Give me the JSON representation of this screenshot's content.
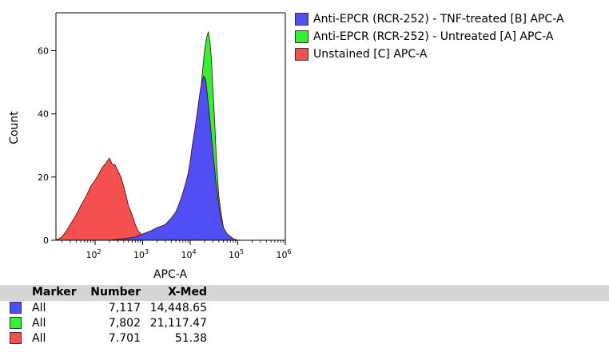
{
  "colors": {
    "tnf": "#4f4ff5",
    "untreated": "#33f233",
    "unstained": "#f45050",
    "outline": "#4a0000"
  },
  "chart_data": {
    "type": "area",
    "xlabel": "APC-A",
    "ylabel": "Count",
    "x_scale": "log",
    "xlim": [
      15,
      1000000
    ],
    "ylim": [
      0,
      72
    ],
    "y_ticks": [
      "0",
      "20",
      "40",
      "60"
    ],
    "x_ticks": [
      {
        "base": "10",
        "exp": "2",
        "value": 100
      },
      {
        "base": "10",
        "exp": "3",
        "value": 1000
      },
      {
        "base": "10",
        "exp": "4",
        "value": 10000
      },
      {
        "base": "10",
        "exp": "5",
        "value": 100000
      },
      {
        "base": "10",
        "exp": "6",
        "value": 1000000
      }
    ],
    "legend_position": "top-right, outside plot",
    "series": [
      {
        "name": "Anti-EPCR (RCR-252) - TNF-treated [B] APC-A",
        "color": "#4f4ff5",
        "x": [
          15,
          100,
          200,
          400,
          700,
          1000,
          1500,
          2000,
          3000,
          4000,
          5000,
          6000,
          7000,
          8000,
          9000,
          10000,
          11000,
          12500,
          14500,
          16500,
          19000,
          21000,
          23000,
          26000,
          30000,
          35000,
          42000,
          50000,
          60000,
          80000,
          100000,
          1000000
        ],
        "y": [
          0,
          0,
          0,
          0.5,
          1,
          2,
          3,
          4,
          5,
          7,
          9,
          12,
          15,
          18,
          21,
          25,
          30,
          35,
          42,
          48,
          52,
          51,
          46,
          38,
          28,
          18,
          9,
          4,
          2,
          0.5,
          0,
          0
        ]
      },
      {
        "name": "Anti-EPCR (RCR-252) - Untreated [A] APC-A",
        "color": "#33f233",
        "x": [
          15,
          1000,
          2000,
          3000,
          4000,
          5000,
          6000,
          7000,
          8000,
          10000,
          12000,
          14000,
          16000,
          18000,
          20000,
          22000,
          24000,
          26000,
          28000,
          30000,
          33000,
          36000,
          40000,
          45000,
          50000,
          60000,
          70000,
          100000,
          1000000
        ],
        "y": [
          0,
          0,
          1,
          2,
          3,
          4,
          5,
          7,
          9,
          15,
          24,
          34,
          44,
          53,
          60,
          64,
          66,
          63,
          57,
          48,
          36,
          24,
          14,
          8,
          4,
          1.5,
          0.5,
          0,
          0
        ]
      },
      {
        "name": "Unstained [C] APC-A",
        "color": "#f45050",
        "x": [
          15,
          20,
          25,
          30,
          40,
          50,
          60,
          70,
          80,
          100,
          120,
          140,
          160,
          180,
          200,
          230,
          260,
          300,
          350,
          400,
          450,
          500,
          600,
          700,
          800,
          1000,
          1200,
          1500,
          2000,
          3000,
          1000000
        ],
        "y": [
          0,
          1,
          3,
          5,
          8,
          11,
          13,
          15,
          17,
          19,
          21,
          23,
          24,
          25,
          26,
          24,
          24,
          22,
          20,
          17,
          14,
          11,
          8,
          5,
          3,
          1.5,
          0.8,
          0.3,
          0,
          0,
          0
        ]
      }
    ]
  },
  "stats": {
    "headers": {
      "marker": "Marker",
      "number": "Number",
      "xmed": "X-Med"
    },
    "rows": [
      {
        "marker": "All",
        "number": "7,117",
        "xmed": "14,448.65",
        "color": "#4f4ff5"
      },
      {
        "marker": "All",
        "number": "7,802",
        "xmed": "21,117.47",
        "color": "#33f233"
      },
      {
        "marker": "All",
        "number": "7.701",
        "xmed": "51.38",
        "color": "#f45050"
      }
    ]
  }
}
